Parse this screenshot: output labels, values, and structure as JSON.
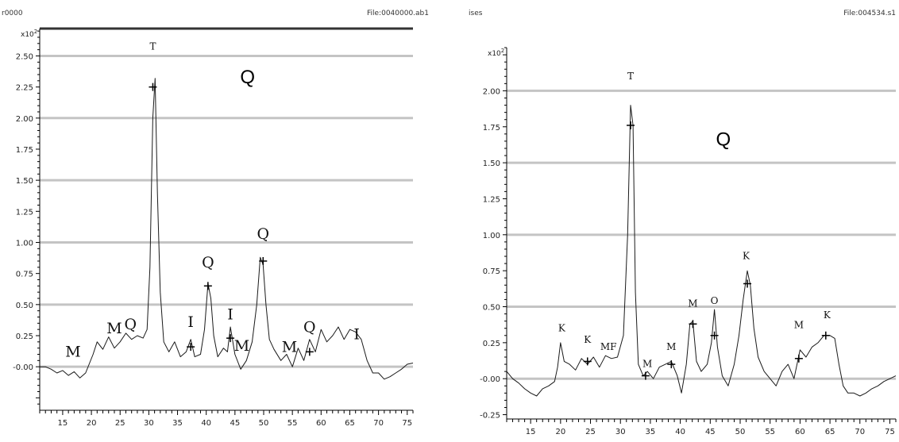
{
  "chart_data": [
    {
      "type": "line",
      "header_left": "r0000",
      "header_right": "File:0040000.ab1",
      "exponent_label": "x10",
      "exponent_power": "2",
      "xlim": [
        11,
        76
      ],
      "ylim": [
        -0.35,
        2.72
      ],
      "xticks": [
        15,
        20,
        25,
        30,
        35,
        40,
        45,
        50,
        55,
        60,
        65,
        70,
        75
      ],
      "xtick_labels": [
        "15",
        "20",
        "25",
        "30",
        "35",
        "40",
        "45",
        "50",
        "55",
        "60",
        "65",
        "70",
        "75"
      ],
      "yticks": [
        0.0,
        0.25,
        0.5,
        0.75,
        1.0,
        1.25,
        1.5,
        1.75,
        2.0,
        2.25,
        2.5
      ],
      "ytick_labels": [
        "-0.00",
        "0.25",
        "0.50",
        "0.75",
        "1.00",
        "1.25",
        "1.50",
        "1.75",
        "2.00",
        "2.25",
        "2.50"
      ],
      "gridlines": [
        0.0,
        0.5,
        1.0,
        1.5,
        2.0,
        2.5
      ],
      "series": [
        {
          "x": [
            11,
            12,
            13,
            14,
            15,
            16,
            17,
            18,
            19,
            19.6,
            20.3,
            21,
            22,
            23,
            24,
            25,
            26,
            27,
            28,
            29,
            29.7,
            30.2,
            30.7,
            31.1,
            31.5,
            32,
            32.6,
            33.5,
            34.5,
            35.5,
            36.5,
            37.3,
            38,
            39,
            39.7,
            40.3,
            40.8,
            41.3,
            42,
            43,
            43.7,
            44.2,
            45,
            46,
            47,
            48,
            48.8,
            49.4,
            49.9,
            50.4,
            51,
            51.8,
            53,
            54,
            55,
            56,
            57,
            58,
            59,
            60,
            61,
            62,
            63,
            64,
            65,
            66,
            67,
            68,
            69,
            70,
            71,
            72,
            73,
            74,
            75,
            76
          ],
          "y": [
            0.0,
            0.0,
            -0.02,
            -0.05,
            -0.03,
            -0.07,
            -0.04,
            -0.09,
            -0.05,
            0.02,
            0.1,
            0.2,
            0.14,
            0.24,
            0.15,
            0.2,
            0.27,
            0.22,
            0.25,
            0.23,
            0.3,
            0.8,
            2.0,
            2.32,
            1.4,
            0.6,
            0.2,
            0.12,
            0.2,
            0.08,
            0.12,
            0.22,
            0.08,
            0.1,
            0.3,
            0.67,
            0.55,
            0.25,
            0.08,
            0.15,
            0.12,
            0.32,
            0.1,
            -0.02,
            0.05,
            0.2,
            0.5,
            0.88,
            0.82,
            0.5,
            0.22,
            0.14,
            0.05,
            0.1,
            0.0,
            0.15,
            0.05,
            0.22,
            0.12,
            0.3,
            0.2,
            0.25,
            0.32,
            0.22,
            0.3,
            0.28,
            0.22,
            0.05,
            -0.05,
            -0.05,
            -0.1,
            -0.08,
            -0.05,
            -0.02,
            0.02,
            0.03
          ]
        }
      ],
      "peak_markers": [
        {
          "x": 30.7,
          "y": 2.25
        },
        {
          "x": 37.3,
          "y": 0.16
        },
        {
          "x": 40.3,
          "y": 0.65
        },
        {
          "x": 44.2,
          "y": 0.23
        },
        {
          "x": 49.9,
          "y": 0.85
        },
        {
          "x": 58.0,
          "y": 0.12
        }
      ],
      "annotations": [
        {
          "text": "M",
          "x": 16.8,
          "y": 0.08,
          "size": "large"
        },
        {
          "text": "M",
          "x": 24.0,
          "y": 0.27,
          "size": "large"
        },
        {
          "text": "Q",
          "x": 26.8,
          "y": 0.3,
          "size": "large"
        },
        {
          "text": "T",
          "x": 30.7,
          "y": 2.55,
          "size": "small"
        },
        {
          "text": "I",
          "x": 37.3,
          "y": 0.32,
          "size": "large"
        },
        {
          "text": "Q",
          "x": 40.3,
          "y": 0.8,
          "size": "large"
        },
        {
          "text": "I",
          "x": 44.2,
          "y": 0.38,
          "size": "large"
        },
        {
          "text": "M",
          "x": 46.2,
          "y": 0.13,
          "size": "large"
        },
        {
          "text": "Q",
          "x": 49.9,
          "y": 1.03,
          "size": "large"
        },
        {
          "text": "M",
          "x": 54.5,
          "y": 0.12,
          "size": "large"
        },
        {
          "text": "Q",
          "x": 58.0,
          "y": 0.28,
          "size": "large"
        },
        {
          "text": "I",
          "x": 66.2,
          "y": 0.22,
          "size": "large"
        }
      ],
      "big_label": {
        "text": "Q",
        "x": 47.2,
        "y": 2.28
      }
    },
    {
      "type": "line",
      "header_left": "ises",
      "header_right": "File:004534.s1",
      "exponent_label": "x10",
      "exponent_power": "2",
      "xlim": [
        11,
        76
      ],
      "ylim": [
        -0.28,
        2.3
      ],
      "xticks": [
        15,
        20,
        25,
        30,
        35,
        40,
        45,
        50,
        55,
        60,
        65,
        70,
        75
      ],
      "xtick_labels": [
        "15",
        "20",
        "25",
        "30",
        "35",
        "40",
        "45",
        "50",
        "55",
        "60",
        "65",
        "70",
        "75"
      ],
      "yticks": [
        -0.25,
        0.0,
        0.25,
        0.5,
        0.75,
        1.0,
        1.25,
        1.5,
        1.75,
        2.0
      ],
      "ytick_labels": [
        "-0.25",
        "-0.00",
        "0.25",
        "0.50",
        "0.75",
        "1.00",
        "1.25",
        "1.50",
        "1.75",
        "2.00"
      ],
      "gridlines": [
        0.0,
        0.5,
        1.0,
        1.5,
        2.0
      ],
      "series": [
        {
          "x": [
            11,
            12,
            13,
            14,
            15,
            16,
            17,
            18,
            19,
            19.5,
            20,
            20.6,
            21.5,
            22.5,
            23.5,
            24.5,
            25.5,
            26.5,
            27.5,
            28.5,
            29.5,
            30.5,
            31.2,
            31.7,
            32.1,
            32.5,
            33,
            33.8,
            34.5,
            35.5,
            36.5,
            37.5,
            38.5,
            39.5,
            40.2,
            41,
            41.6,
            42.1,
            42.7,
            43.5,
            44.5,
            45.2,
            45.7,
            46.2,
            47,
            48,
            49,
            49.8,
            50.5,
            51.2,
            51.7,
            52.3,
            53,
            54,
            55,
            56,
            57,
            58,
            59,
            60,
            61,
            62,
            63,
            64,
            65,
            65.8,
            66.5,
            67.2,
            68,
            69,
            70,
            71,
            72,
            73,
            74,
            75,
            76
          ],
          "y": [
            0.05,
            0.0,
            -0.03,
            -0.07,
            -0.1,
            -0.12,
            -0.07,
            -0.05,
            -0.02,
            0.08,
            0.25,
            0.12,
            0.1,
            0.06,
            0.14,
            0.1,
            0.15,
            0.08,
            0.16,
            0.14,
            0.15,
            0.3,
            1.0,
            1.9,
            1.76,
            0.6,
            0.1,
            0.02,
            0.05,
            0.0,
            0.08,
            0.1,
            0.12,
            0.02,
            -0.1,
            0.1,
            0.38,
            0.4,
            0.12,
            0.05,
            0.1,
            0.25,
            0.48,
            0.22,
            0.02,
            -0.05,
            0.1,
            0.3,
            0.55,
            0.75,
            0.65,
            0.35,
            0.15,
            0.05,
            0.0,
            -0.05,
            0.05,
            0.1,
            0.0,
            0.2,
            0.15,
            0.22,
            0.25,
            0.3,
            0.3,
            0.28,
            0.1,
            -0.05,
            -0.1,
            -0.1,
            -0.12,
            -0.1,
            -0.07,
            -0.05,
            -0.02,
            0.0,
            0.02
          ]
        }
      ],
      "peak_markers": [
        {
          "x": 24.5,
          "y": 0.12
        },
        {
          "x": 31.7,
          "y": 1.76
        },
        {
          "x": 34.2,
          "y": 0.02
        },
        {
          "x": 38.5,
          "y": 0.1
        },
        {
          "x": 42.1,
          "y": 0.38
        },
        {
          "x": 45.7,
          "y": 0.3
        },
        {
          "x": 51.2,
          "y": 0.66
        },
        {
          "x": 59.8,
          "y": 0.14
        },
        {
          "x": 64.3,
          "y": 0.3
        }
      ],
      "annotations": [
        {
          "text": "K",
          "x": 20.2,
          "y": 0.33,
          "size": "small"
        },
        {
          "text": "K",
          "x": 24.5,
          "y": 0.25,
          "size": "small"
        },
        {
          "text": "MF",
          "x": 28.0,
          "y": 0.2,
          "size": "small"
        },
        {
          "text": "T",
          "x": 31.7,
          "y": 2.08,
          "size": "small"
        },
        {
          "text": "M",
          "x": 34.5,
          "y": 0.08,
          "size": "small"
        },
        {
          "text": "M",
          "x": 38.5,
          "y": 0.2,
          "size": "small"
        },
        {
          "text": "M",
          "x": 42.1,
          "y": 0.5,
          "size": "small"
        },
        {
          "text": "O",
          "x": 45.7,
          "y": 0.52,
          "size": "small"
        },
        {
          "text": "K",
          "x": 51.0,
          "y": 0.83,
          "size": "small"
        },
        {
          "text": "M",
          "x": 59.8,
          "y": 0.35,
          "size": "small"
        },
        {
          "text": "K",
          "x": 64.5,
          "y": 0.42,
          "size": "small"
        }
      ],
      "big_label": {
        "text": "Q",
        "x": 47.2,
        "y": 1.62
      }
    }
  ]
}
